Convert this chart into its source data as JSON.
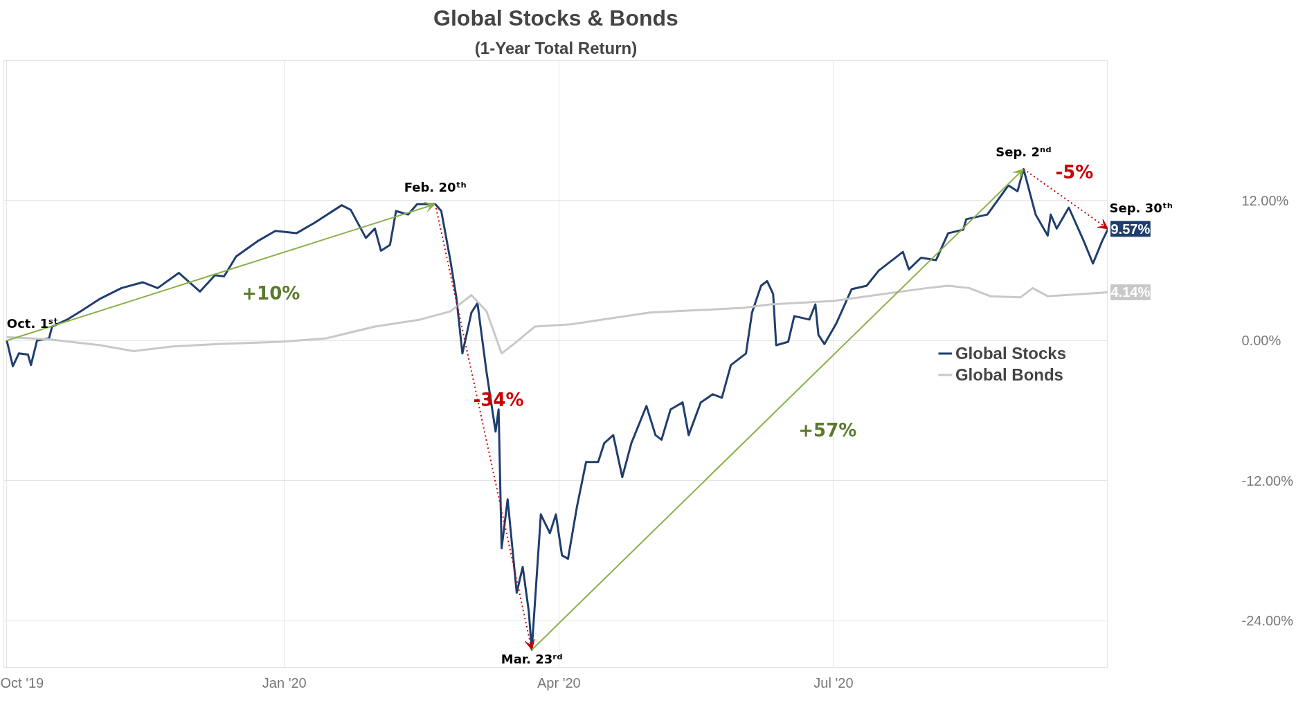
{
  "chart_data": {
    "type": "line",
    "title": "Global Stocks & Bonds",
    "subtitle": "(1-Year Total Return)",
    "xlim": [
      "2019-09-30",
      "2020-09-30"
    ],
    "xticks": [
      {
        "value": "2019-10-01",
        "label": "Oct '19"
      },
      {
        "value": "2020-01-01",
        "label": "Jan '20"
      },
      {
        "value": "2020-04-01",
        "label": "Apr '20"
      },
      {
        "value": "2020-07-01",
        "label": "Jul '20"
      }
    ],
    "ylim": [
      -28,
      24
    ],
    "yticks": [
      {
        "value": -24,
        "label": "-24.00%"
      },
      {
        "value": -12,
        "label": "-12.00%"
      },
      {
        "value": 0,
        "label": "0.00%"
      },
      {
        "value": 12,
        "label": "12.00%"
      }
    ],
    "grid": true,
    "legend": "right",
    "marker": "none",
    "line_style": "solid",
    "series": [
      {
        "name": "Global Stocks",
        "color": "#1f3e6e",
        "x": [
          "2019-10-01",
          "2019-10-03",
          "2019-10-05",
          "2019-10-08",
          "2019-10-09",
          "2019-10-11",
          "2019-10-15",
          "2019-10-16",
          "2019-10-21",
          "2019-10-26",
          "2019-11-01",
          "2019-11-08",
          "2019-11-15",
          "2019-11-20",
          "2019-11-27",
          "2019-12-04",
          "2019-12-09",
          "2019-12-12",
          "2019-12-16",
          "2019-12-23",
          "2019-12-29",
          "2020-01-05",
          "2020-01-11",
          "2020-01-20",
          "2020-01-23",
          "2020-01-28",
          "2020-01-31",
          "2020-02-02",
          "2020-02-05",
          "2020-02-07",
          "2020-02-11",
          "2020-02-14",
          "2020-02-20",
          "2020-02-22",
          "2020-02-25",
          "2020-02-27",
          "2020-02-29",
          "2020-03-03",
          "2020-03-05",
          "2020-03-08",
          "2020-03-11",
          "2020-03-12",
          "2020-03-13",
          "2020-03-15",
          "2020-03-18",
          "2020-03-20",
          "2020-03-22",
          "2020-03-23",
          "2020-03-26",
          "2020-03-29",
          "2020-03-31",
          "2020-04-02",
          "2020-04-04",
          "2020-04-07",
          "2020-04-10",
          "2020-04-14",
          "2020-04-16",
          "2020-04-19",
          "2020-04-22",
          "2020-04-25",
          "2020-04-30",
          "2020-05-03",
          "2020-05-05",
          "2020-05-08",
          "2020-05-12",
          "2020-05-14",
          "2020-05-18",
          "2020-05-22",
          "2020-05-25",
          "2020-05-28",
          "2020-06-02",
          "2020-06-04",
          "2020-06-07",
          "2020-06-09",
          "2020-06-11",
          "2020-06-12",
          "2020-06-16",
          "2020-06-18",
          "2020-06-23",
          "2020-06-25",
          "2020-06-26",
          "2020-06-28",
          "2020-07-02",
          "2020-07-07",
          "2020-07-12",
          "2020-07-16",
          "2020-07-24",
          "2020-07-26",
          "2020-07-30",
          "2020-08-04",
          "2020-08-08",
          "2020-08-13",
          "2020-08-14",
          "2020-08-21",
          "2020-08-28",
          "2020-08-31",
          "2020-09-02",
          "2020-09-06",
          "2020-09-10",
          "2020-09-11",
          "2020-09-13",
          "2020-09-17",
          "2020-09-22",
          "2020-09-25",
          "2020-09-28",
          "2020-09-30"
        ],
        "values": [
          0,
          -2.2,
          -1.1,
          -1.2,
          -2.1,
          0,
          0.2,
          1.2,
          1.8,
          2.6,
          3.6,
          4.5,
          5.0,
          4.5,
          5.8,
          4.2,
          5.6,
          5.5,
          7.2,
          8.5,
          9.4,
          9.2,
          10.1,
          11.6,
          11.2,
          8.8,
          9.6,
          7.7,
          8.2,
          11.1,
          10.8,
          11.7,
          11.7,
          11.1,
          6.9,
          3.7,
          -1.1,
          2.4,
          3.2,
          -2.7,
          -7.8,
          -5.9,
          -17.8,
          -13.6,
          -21.6,
          -19.4,
          -23.2,
          -26.5,
          -14.9,
          -16.5,
          -14.9,
          -18.4,
          -18.7,
          -14.2,
          -10.4,
          -10.4,
          -8.8,
          -8.1,
          -11.7,
          -8.8,
          -5.6,
          -8.1,
          -8.5,
          -5.9,
          -5.3,
          -8.1,
          -5.3,
          -4.6,
          -4.9,
          -2.1,
          -1.1,
          2.4,
          4.7,
          5.1,
          4.0,
          -0.4,
          -0.1,
          2.1,
          1.8,
          3.1,
          0.5,
          -0.3,
          1.5,
          4.4,
          4.7,
          6.0,
          7.6,
          6.1,
          7.1,
          6.9,
          9.2,
          9.5,
          10.4,
          10.8,
          13.3,
          12.8,
          14.7,
          10.8,
          9.0,
          10.8,
          9.6,
          11.4,
          8.5,
          6.6,
          8.5,
          9.57
        ],
        "value_labels": [
          null,
          null,
          null,
          null,
          null,
          null,
          null,
          null,
          null,
          null,
          null,
          null,
          null,
          null,
          null,
          null,
          null,
          null,
          null,
          null,
          null,
          null,
          null,
          null,
          null,
          null,
          null,
          null,
          null,
          null,
          null,
          null,
          null,
          null,
          null,
          null,
          null,
          null,
          null,
          null,
          null,
          null,
          null,
          null,
          null,
          null,
          null,
          null,
          null,
          null,
          null,
          null,
          null,
          null,
          null,
          null,
          null,
          null,
          null,
          null,
          null,
          null,
          null,
          null,
          null,
          null,
          null,
          null,
          null,
          null,
          null,
          null,
          null,
          null,
          null,
          null,
          null,
          null,
          null,
          null,
          null,
          null,
          null,
          null,
          null,
          null,
          null,
          null,
          null,
          null,
          null,
          null,
          null,
          null,
          null,
          null,
          null,
          null,
          null,
          null,
          null,
          null,
          null,
          null,
          null,
          "9.57%"
        ]
      },
      {
        "name": "Global Bonds",
        "color": "#c8c8c8",
        "x": [
          "2019-10-01",
          "2019-10-15",
          "2019-11-01",
          "2019-11-12",
          "2019-11-25",
          "2019-12-10",
          "2019-12-31",
          "2020-01-15",
          "2020-01-31",
          "2020-02-15",
          "2020-02-25",
          "2020-03-03",
          "2020-03-08",
          "2020-03-13",
          "2020-03-17",
          "2020-03-24",
          "2020-04-05",
          "2020-05-01",
          "2020-06-01",
          "2020-06-10",
          "2020-07-01",
          "2020-08-01",
          "2020-08-08",
          "2020-08-15",
          "2020-08-22",
          "2020-09-01",
          "2020-09-05",
          "2020-09-10",
          "2020-09-30"
        ],
        "values": [
          0.3,
          0.1,
          -0.4,
          -0.9,
          -0.5,
          -0.3,
          -0.1,
          0.2,
          1.2,
          1.8,
          2.5,
          3.9,
          2.5,
          -1.1,
          -0.3,
          1.2,
          1.4,
          2.4,
          2.8,
          3.1,
          3.4,
          4.5,
          4.7,
          4.5,
          3.8,
          3.7,
          4.5,
          3.8,
          4.14
        ],
        "value_labels": [
          null,
          null,
          null,
          null,
          null,
          null,
          null,
          null,
          null,
          null,
          null,
          null,
          null,
          null,
          null,
          null,
          null,
          null,
          null,
          null,
          null,
          null,
          null,
          null,
          null,
          null,
          null,
          null,
          "4.14%"
        ]
      }
    ],
    "annotations": [
      {
        "text": "Oct. 1ˢᵗ",
        "x": "2019-10-01",
        "y": 0
      },
      {
        "text": "Feb. 20ᵗʰ",
        "x": "2020-02-20",
        "y": 11.7
      },
      {
        "text": "Mar. 23ʳᵈ",
        "x": "2020-03-23",
        "y": -26.5
      },
      {
        "text": "Sep. 2ⁿᵈ",
        "x": "2020-09-02",
        "y": 14.7
      },
      {
        "text": "Sep. 30ᵗʰ",
        "x": "2020-09-30",
        "y": 9.57
      },
      "+10%",
      "-34%",
      "+57%",
      "-5%"
    ]
  }
}
